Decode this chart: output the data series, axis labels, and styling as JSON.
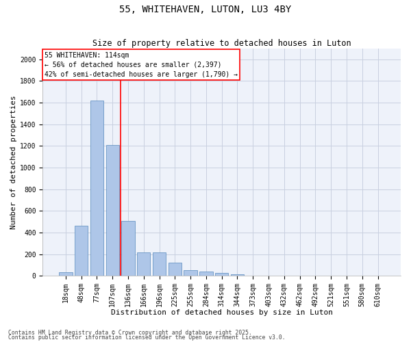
{
  "title1": "55, WHITEHAVEN, LUTON, LU3 4BY",
  "title2": "Size of property relative to detached houses in Luton",
  "xlabel": "Distribution of detached houses by size in Luton",
  "ylabel": "Number of detached properties",
  "categories": [
    "18sqm",
    "48sqm",
    "77sqm",
    "107sqm",
    "136sqm",
    "166sqm",
    "196sqm",
    "225sqm",
    "255sqm",
    "284sqm",
    "314sqm",
    "344sqm",
    "373sqm",
    "403sqm",
    "432sqm",
    "462sqm",
    "492sqm",
    "521sqm",
    "551sqm",
    "580sqm",
    "610sqm"
  ],
  "values": [
    35,
    460,
    1620,
    1210,
    505,
    220,
    220,
    125,
    50,
    40,
    25,
    15,
    0,
    0,
    0,
    0,
    0,
    0,
    0,
    0,
    0
  ],
  "bar_color": "#aec6e8",
  "bar_edgecolor": "#5588bb",
  "vline_color": "red",
  "vline_pos": 3.5,
  "annotation_text": "55 WHITEHAVEN: 114sqm\n← 56% of detached houses are smaller (2,397)\n42% of semi-detached houses are larger (1,790) →",
  "box_edgecolor": "red",
  "ylim": [
    0,
    2100
  ],
  "yticks": [
    0,
    200,
    400,
    600,
    800,
    1000,
    1200,
    1400,
    1600,
    1800,
    2000
  ],
  "footer1": "Contains HM Land Registry data © Crown copyright and database right 2025.",
  "footer2": "Contains public sector information licensed under the Open Government Licence v3.0.",
  "bg_color": "#eef2fa",
  "grid_color": "#c8cfe0",
  "title1_fontsize": 10,
  "title2_fontsize": 8.5,
  "axis_label_fontsize": 8,
  "tick_fontsize": 7,
  "annotation_fontsize": 7,
  "footer_fontsize": 5.8
}
